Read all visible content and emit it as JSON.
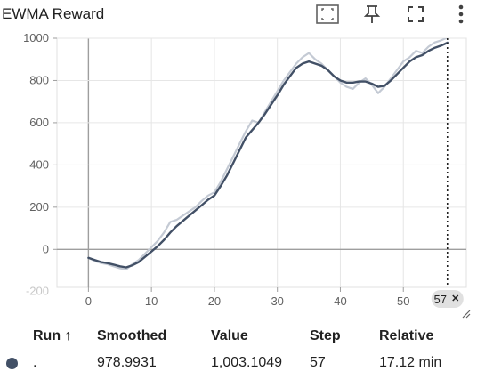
{
  "header": {
    "title": "EWMA Reward",
    "toolbar": [
      {
        "name": "fit-domain-icon",
        "label": ""
      },
      {
        "name": "pin-icon",
        "label": ""
      },
      {
        "name": "fullscreen-icon",
        "label": ""
      },
      {
        "name": "more-vert-icon",
        "label": ""
      }
    ]
  },
  "chart_data": {
    "type": "line",
    "title": "EWMA Reward",
    "xlabel": "",
    "ylabel": "",
    "xlim": [
      -5,
      60
    ],
    "ylim": [
      -180,
      1000
    ],
    "x_ticks": [
      0,
      10,
      20,
      30,
      40,
      50
    ],
    "y_ticks": [
      -200,
      0,
      200,
      400,
      600,
      800,
      1000
    ],
    "grid": true,
    "cursor": {
      "x": 57,
      "label": "57"
    },
    "series": [
      {
        "name": "Value",
        "color": "#c4cad4",
        "x": [
          0,
          1,
          2,
          3,
          4,
          5,
          6,
          7,
          8,
          9,
          10,
          11,
          12,
          13,
          14,
          15,
          16,
          17,
          18,
          19,
          20,
          21,
          22,
          23,
          24,
          25,
          26,
          27,
          28,
          29,
          30,
          31,
          32,
          33,
          34,
          35,
          36,
          37,
          38,
          39,
          40,
          41,
          42,
          43,
          44,
          45,
          46,
          47,
          48,
          49,
          50,
          51,
          52,
          53,
          54,
          55,
          56,
          57
        ],
        "values": [
          -40,
          -55,
          -65,
          -70,
          -80,
          -90,
          -95,
          -70,
          -50,
          -20,
          10,
          40,
          80,
          130,
          140,
          160,
          180,
          200,
          230,
          255,
          270,
          320,
          380,
          440,
          500,
          560,
          610,
          600,
          650,
          700,
          750,
          800,
          840,
          880,
          910,
          930,
          900,
          880,
          850,
          820,
          790,
          770,
          760,
          790,
          810,
          780,
          740,
          770,
          810,
          850,
          890,
          910,
          940,
          930,
          960,
          980,
          990,
          1003
        ]
      },
      {
        "name": "Smoothed",
        "color": "#425066",
        "x": [
          0,
          1,
          2,
          3,
          4,
          5,
          6,
          7,
          8,
          9,
          10,
          11,
          12,
          13,
          14,
          15,
          16,
          17,
          18,
          19,
          20,
          21,
          22,
          23,
          24,
          25,
          26,
          27,
          28,
          29,
          30,
          31,
          32,
          33,
          34,
          35,
          36,
          37,
          38,
          39,
          40,
          41,
          42,
          43,
          44,
          45,
          46,
          47,
          48,
          49,
          50,
          51,
          52,
          53,
          54,
          55,
          56,
          57
        ],
        "values": [
          -40,
          -50,
          -60,
          -65,
          -72,
          -80,
          -85,
          -75,
          -60,
          -35,
          -10,
          15,
          45,
          80,
          110,
          135,
          160,
          185,
          210,
          235,
          255,
          300,
          350,
          410,
          470,
          530,
          565,
          600,
          640,
          685,
          730,
          780,
          820,
          860,
          880,
          890,
          880,
          870,
          850,
          820,
          800,
          790,
          790,
          795,
          795,
          785,
          770,
          775,
          800,
          830,
          860,
          890,
          910,
          920,
          940,
          955,
          965,
          979
        ]
      }
    ]
  },
  "table": {
    "headers": {
      "run": "Run ↑",
      "smoothed": "Smoothed",
      "value": "Value",
      "step": "Step",
      "relative": "Relative"
    },
    "row": {
      "run": ".",
      "smoothed": "978.9931",
      "value": "1,003.1049",
      "step": "57",
      "relative": "17.12 min",
      "color": "#425066"
    }
  }
}
